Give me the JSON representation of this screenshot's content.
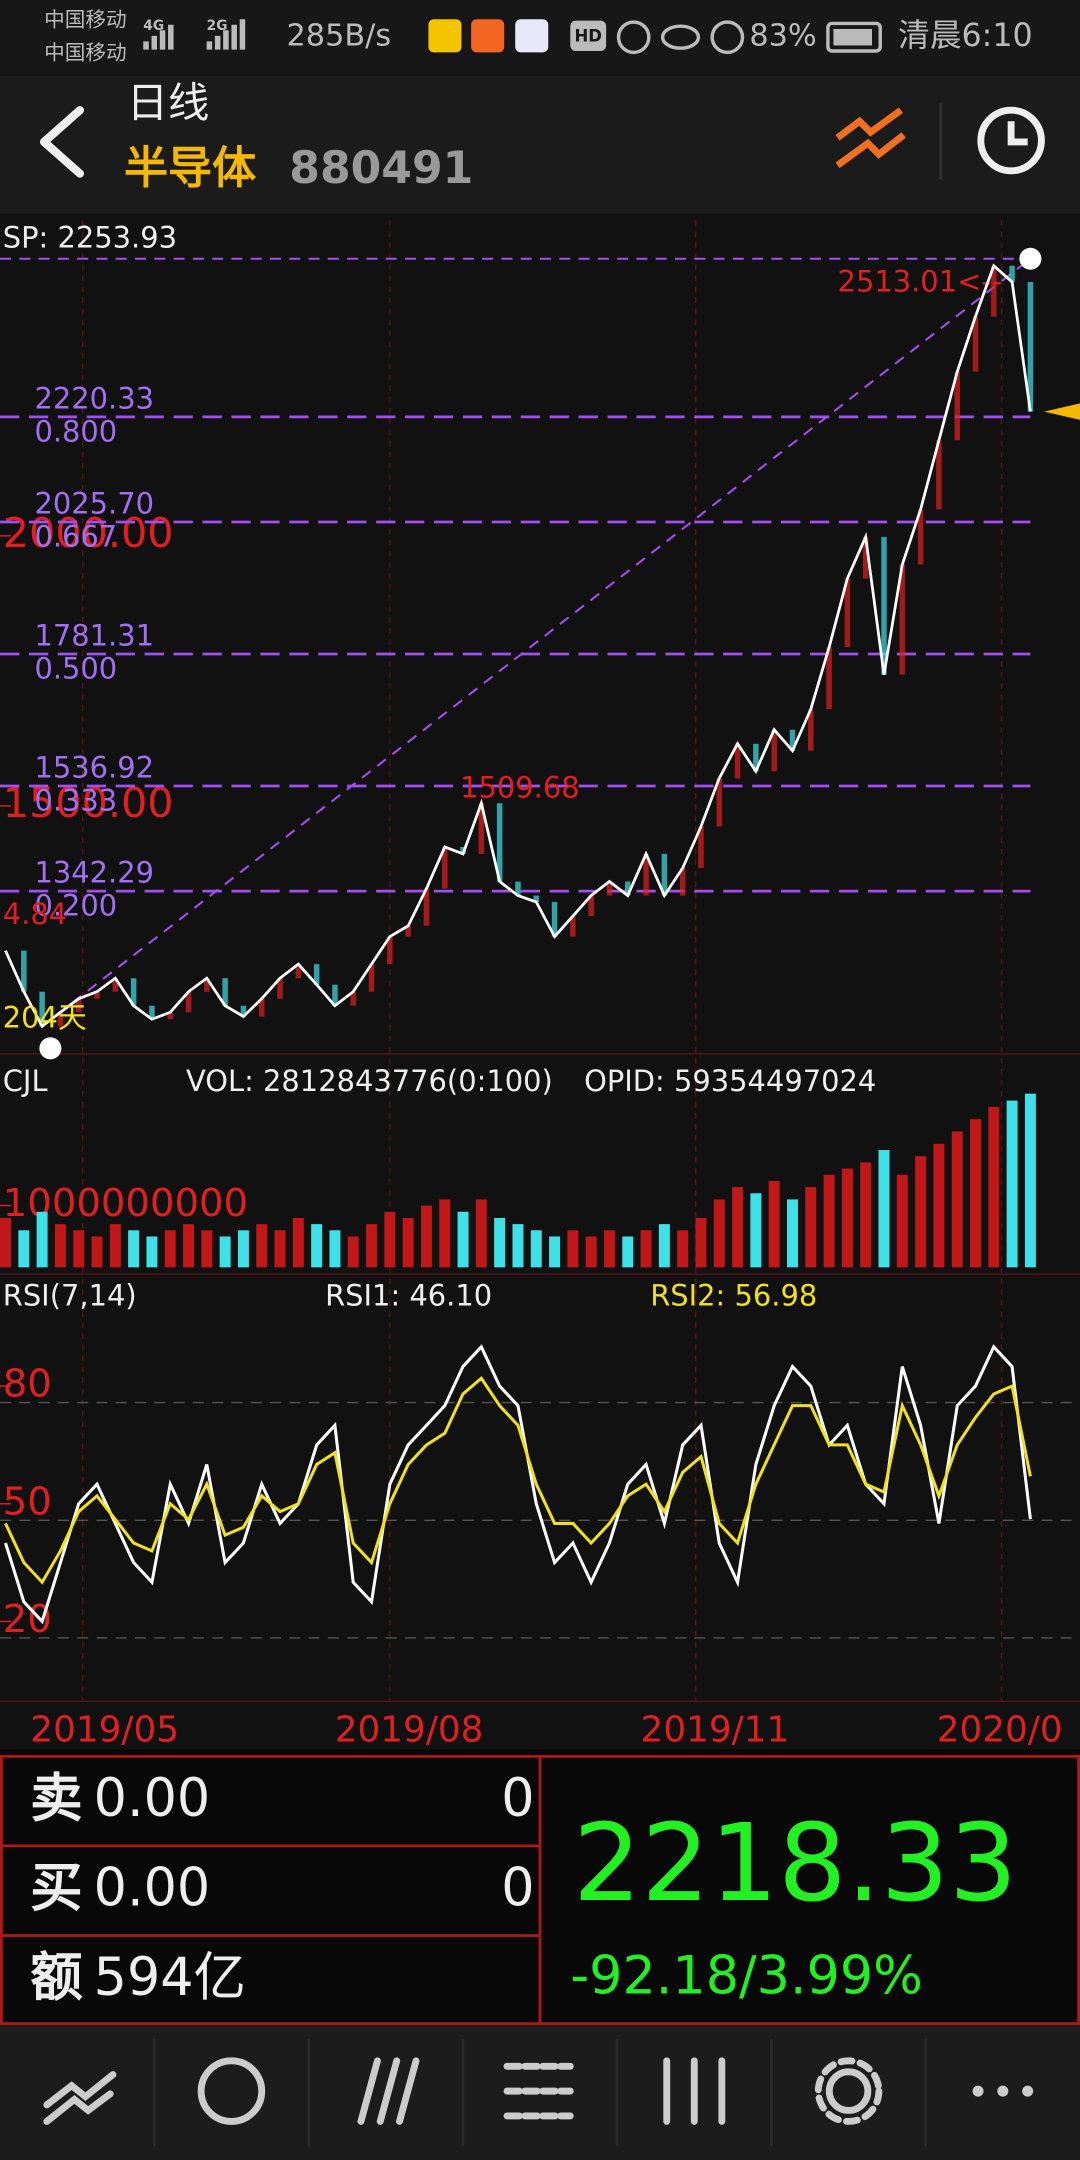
{
  "status_bar": {
    "carrier1": "中国移动",
    "net1": "4G",
    "carrier2": "中国移动",
    "net2": "2G",
    "speed": "285B/s",
    "hd": "HD",
    "battery": "83%",
    "time": "清晨6:10"
  },
  "header": {
    "period": "日线",
    "name": "半导体",
    "code": "880491"
  },
  "chart_data": [
    {
      "type": "line",
      "sp_label": "SP: 2253.93",
      "color": "#ffffff",
      "values": [
        1232,
        1156,
        1092,
        1118,
        1143,
        1156,
        1181,
        1130,
        1105,
        1118,
        1156,
        1181,
        1130,
        1110,
        1143,
        1181,
        1207,
        1169,
        1130,
        1156,
        1207,
        1258,
        1278,
        1347,
        1424,
        1411,
        1505,
        1360,
        1334,
        1322,
        1258,
        1296,
        1334,
        1360,
        1334,
        1411,
        1334,
        1385,
        1462,
        1551,
        1615,
        1564,
        1641,
        1602,
        1679,
        1794,
        1921,
        1998,
        1743,
        1947,
        2049,
        2177,
        2304,
        2406,
        2500,
        2470,
        2230
      ],
      "ylim": [
        1041,
        2584
      ],
      "yticks": [
        {
          "value": 1500,
          "label": "1500.00"
        },
        {
          "value": 2000,
          "label": "2000.00"
        }
      ],
      "high": {
        "value": 2513.01,
        "label": "2513.01<--"
      },
      "fib_levels": [
        {
          "value": 2220.33,
          "label": "2220.33",
          "ratio": {
            "value": 0.8,
            "label": "0.800"
          }
        },
        {
          "value": 2025.7,
          "label": "2025.70",
          "ratio": {
            "value": 0.667,
            "label": "0.667"
          }
        },
        {
          "value": 1781.31,
          "label": "1781.31",
          "ratio": {
            "value": 0.5,
            "label": "0.500"
          }
        },
        {
          "value": 1536.92,
          "label": "1536.92",
          "ratio": {
            "value": 0.333,
            "label": "0.333"
          }
        },
        {
          "value": 1342.29,
          "label": "1342.29",
          "ratio": {
            "value": 0.2,
            "label": "0.200"
          }
        }
      ],
      "annotations": [
        "1509.68",
        "4.84",
        "204天"
      ]
    },
    {
      "type": "bar",
      "title": "CJL",
      "vol_label": "VOL: 2812843776(0:100)",
      "opid_label": "OPID: 59354497024",
      "up_color": "#c01818",
      "down_color": "#40e0e8",
      "values": [
        800000000,
        600000000,
        900000000,
        700000000,
        600000000,
        500000000,
        700000000,
        600000000,
        500000000,
        600000000,
        700000000,
        600000000,
        500000000,
        600000000,
        700000000,
        600000000,
        800000000,
        700000000,
        600000000,
        500000000,
        700000000,
        900000000,
        800000000,
        1000000000,
        1100000000,
        900000000,
        1100000000,
        800000000,
        700000000,
        600000000,
        500000000,
        600000000,
        500000000,
        600000000,
        500000000,
        600000000,
        700000000,
        600000000,
        800000000,
        1100000000,
        1300000000,
        1200000000,
        1400000000,
        1100000000,
        1300000000,
        1500000000,
        1600000000,
        1700000000,
        1900000000,
        1500000000,
        1800000000,
        2000000000,
        2200000000,
        2400000000,
        2600000000,
        2700000000,
        2812843776
      ],
      "ylim": [
        0,
        2900000000
      ],
      "yticks": [
        1000000000
      ]
    },
    {
      "type": "line",
      "title": "RSI(7,14)",
      "ylim": [
        0,
        105
      ],
      "yticks": [
        20,
        50,
        80
      ],
      "series": [
        {
          "name": "RSI1: 46.10",
          "color": "#ffffff",
          "values": [
            40,
            25,
            20,
            35,
            50,
            55,
            45,
            35,
            30,
            55,
            45,
            60,
            35,
            40,
            55,
            45,
            50,
            65,
            70,
            30,
            25,
            55,
            65,
            70,
            75,
            85,
            90,
            80,
            75,
            50,
            35,
            40,
            30,
            40,
            55,
            60,
            45,
            65,
            70,
            40,
            30,
            60,
            75,
            85,
            80,
            65,
            70,
            55,
            50,
            85,
            70,
            45,
            75,
            80,
            90,
            85,
            46.1
          ]
        },
        {
          "name": "RSI2: 56.98",
          "color": "#f0e020",
          "values": [
            45,
            35,
            30,
            38,
            48,
            52,
            46,
            40,
            38,
            50,
            46,
            55,
            42,
            44,
            52,
            48,
            50,
            60,
            63,
            40,
            35,
            50,
            60,
            65,
            68,
            78,
            82,
            75,
            70,
            55,
            45,
            45,
            40,
            45,
            52,
            55,
            48,
            58,
            62,
            45,
            40,
            55,
            65,
            75,
            75,
            65,
            65,
            55,
            53,
            75,
            65,
            52,
            65,
            72,
            78,
            80,
            56.98
          ]
        }
      ]
    }
  ],
  "time_axis": {
    "labels": [
      "2019/05",
      "2019/08",
      "2019/11",
      "2020/0"
    ]
  },
  "quote": {
    "sell": {
      "label": "卖",
      "price": "0.00",
      "qty": 0
    },
    "buy": {
      "label": "买",
      "price": "0.00",
      "qty": 0
    },
    "amount": {
      "label": "额",
      "value": "594亿"
    },
    "price": 2218.33,
    "change": "-92.18/3.99%"
  }
}
